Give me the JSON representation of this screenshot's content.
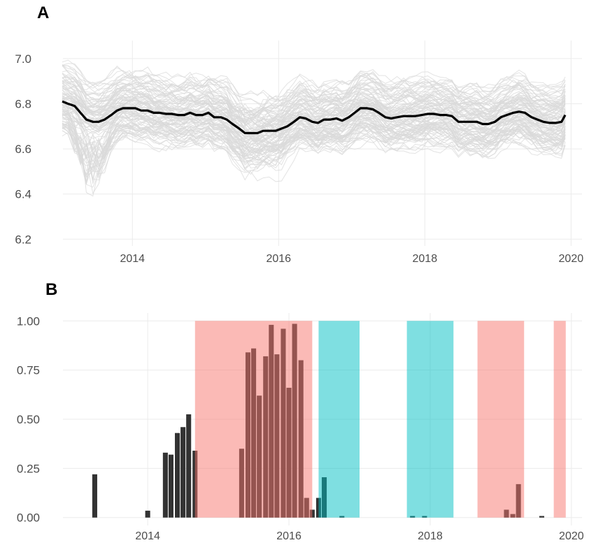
{
  "chart_data": [
    {
      "panel": "A",
      "type": "line",
      "title": "",
      "xlabel": "",
      "ylabel": "",
      "xlim": [
        2013.05,
        2020.15
      ],
      "ylim": [
        6.17,
        7.08
      ],
      "x_ticks": [
        2014,
        2016,
        2018,
        2020
      ],
      "y_ticks": [
        6.2,
        6.4,
        6.6,
        6.8,
        7.0
      ],
      "y_tick_labels": [
        "6.2",
        "6.4",
        "6.6",
        "6.8",
        "7.0"
      ],
      "grid": true,
      "background_series": {
        "description_color": "#d9d9d9",
        "count": 110
      },
      "series": [
        {
          "color": "#000000",
          "x": [
            2013.04,
            2013.12,
            2013.21,
            2013.29,
            2013.37,
            2013.46,
            2013.54,
            2013.62,
            2013.71,
            2013.79,
            2013.87,
            2013.96,
            2014.04,
            2014.12,
            2014.21,
            2014.29,
            2014.37,
            2014.46,
            2014.54,
            2014.62,
            2014.71,
            2014.79,
            2014.87,
            2014.96,
            2015.04,
            2015.12,
            2015.21,
            2015.29,
            2015.37,
            2015.46,
            2015.54,
            2015.62,
            2015.71,
            2015.79,
            2015.87,
            2015.96,
            2016.04,
            2016.12,
            2016.21,
            2016.29,
            2016.37,
            2016.46,
            2016.54,
            2016.62,
            2016.71,
            2016.79,
            2016.87,
            2016.96,
            2017.04,
            2017.12,
            2017.21,
            2017.29,
            2017.37,
            2017.46,
            2017.54,
            2017.62,
            2017.71,
            2017.79,
            2017.87,
            2017.96,
            2018.04,
            2018.12,
            2018.21,
            2018.29,
            2018.37,
            2018.46,
            2018.54,
            2018.62,
            2018.71,
            2018.79,
            2018.87,
            2018.96,
            2019.04,
            2019.12,
            2019.21,
            2019.29,
            2019.37,
            2019.46,
            2019.54,
            2019.62,
            2019.71,
            2019.79,
            2019.87,
            2019.92
          ],
          "values": [
            6.81,
            6.8,
            6.79,
            6.76,
            6.73,
            6.72,
            6.72,
            6.73,
            6.75,
            6.77,
            6.78,
            6.78,
            6.78,
            6.77,
            6.77,
            6.76,
            6.76,
            6.755,
            6.755,
            6.75,
            6.75,
            6.76,
            6.75,
            6.75,
            6.76,
            6.74,
            6.74,
            6.73,
            6.71,
            6.69,
            6.67,
            6.67,
            6.67,
            6.68,
            6.68,
            6.68,
            6.69,
            6.7,
            6.72,
            6.74,
            6.735,
            6.72,
            6.715,
            6.73,
            6.73,
            6.735,
            6.725,
            6.74,
            6.76,
            6.78,
            6.78,
            6.775,
            6.76,
            6.74,
            6.735,
            6.74,
            6.745,
            6.745,
            6.745,
            6.75,
            6.755,
            6.755,
            6.75,
            6.75,
            6.745,
            6.72,
            6.72,
            6.72,
            6.72,
            6.71,
            6.71,
            6.72,
            6.74,
            6.75,
            6.76,
            6.765,
            6.76,
            6.74,
            6.73,
            6.72,
            6.715,
            6.715,
            6.72,
            6.75
          ]
        }
      ]
    },
    {
      "panel": "B",
      "type": "bar",
      "title": "",
      "xlabel": "",
      "ylabel": "",
      "xlim": [
        2012.8,
        2020.15
      ],
      "ylim": [
        -0.04,
        1.04
      ],
      "x_ticks": [
        2014,
        2016,
        2018,
        2020
      ],
      "y_ticks": [
        0,
        0.25,
        0.5,
        0.75,
        1.0
      ],
      "y_tick_labels": [
        "0.00",
        "0.25",
        "0.50",
        "0.75",
        "1.00"
      ],
      "grid": true,
      "bar_color": "#333333",
      "bar_width_years": 0.07,
      "bars": {
        "x": [
          2013.25,
          2014.0,
          2014.25,
          2014.33,
          2014.42,
          2014.5,
          2014.58,
          2014.67,
          2015.33,
          2015.42,
          2015.5,
          2015.58,
          2015.67,
          2015.75,
          2015.83,
          2015.92,
          2016.0,
          2016.08,
          2016.17,
          2016.25,
          2016.33,
          2016.42,
          2016.5,
          2016.75,
          2017.75,
          2017.92,
          2019.08,
          2019.17,
          2019.25,
          2019.58
        ],
        "values": [
          0.22,
          0.035,
          0.33,
          0.32,
          0.43,
          0.46,
          0.525,
          0.34,
          0.35,
          0.84,
          0.86,
          0.62,
          0.82,
          0.98,
          0.83,
          0.96,
          0.66,
          0.985,
          0.8,
          0.1,
          0.04,
          0.1,
          0.205,
          0.008,
          0.008,
          0.008,
          0.04,
          0.018,
          0.17,
          0.008
        ]
      },
      "shaded_regions": [
        {
          "x0": 2014.67,
          "x1": 2016.33,
          "color": "#f8766d"
        },
        {
          "x0": 2016.42,
          "x1": 2017.0,
          "color": "#00bfc4"
        },
        {
          "x0": 2017.67,
          "x1": 2018.33,
          "color": "#00bfc4"
        },
        {
          "x0": 2018.67,
          "x1": 2019.33,
          "color": "#f8766d"
        },
        {
          "x0": 2019.75,
          "x1": 2019.92,
          "color": "#f8766d"
        }
      ]
    }
  ],
  "labels": {
    "panel_a": "A",
    "panel_b": "B"
  },
  "colors": {
    "grid": "#ebebeb",
    "background_lines": "#d9d9d9",
    "mean_line": "#000000",
    "red_region": "#f8766d",
    "teal_region": "#00bfc4",
    "bars": "#333333"
  }
}
